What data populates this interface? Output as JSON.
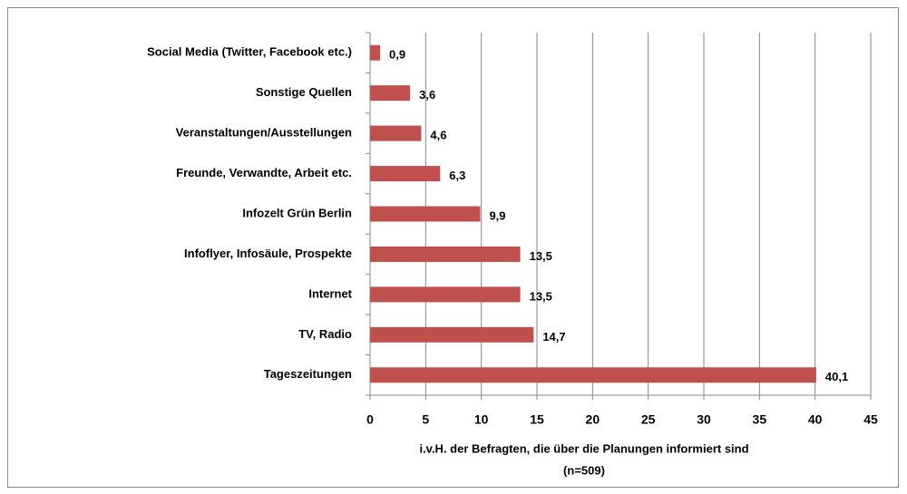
{
  "chart_data": {
    "type": "barh",
    "categories": [
      "Social Media (Twitter, Facebook etc.)",
      "Sonstige Quellen",
      "Veranstaltungen/Ausstellungen",
      "Freunde, Verwandte, Arbeit etc.",
      "Infozelt Grün Berlin",
      "Infoflyer, Infosäule, Prospekte",
      "Internet",
      "TV, Radio",
      "Tageszeitungen"
    ],
    "values": [
      0.9,
      3.6,
      4.6,
      6.3,
      9.9,
      13.5,
      13.5,
      14.7,
      40.1
    ],
    "value_labels": [
      "0,9",
      "3,6",
      "4,6",
      "6,3",
      "9,9",
      "13,5",
      "13,5",
      "14,7",
      "40,1"
    ],
    "color": "#c0504d",
    "xlim": [
      0,
      45
    ],
    "xticks": [
      0,
      5,
      10,
      15,
      20,
      25,
      30,
      35,
      40,
      45
    ],
    "xlabel": [
      "i.v.H. der Befragten, die über die Planungen  informiert sind",
      "(n=509)"
    ],
    "grid": true
  }
}
